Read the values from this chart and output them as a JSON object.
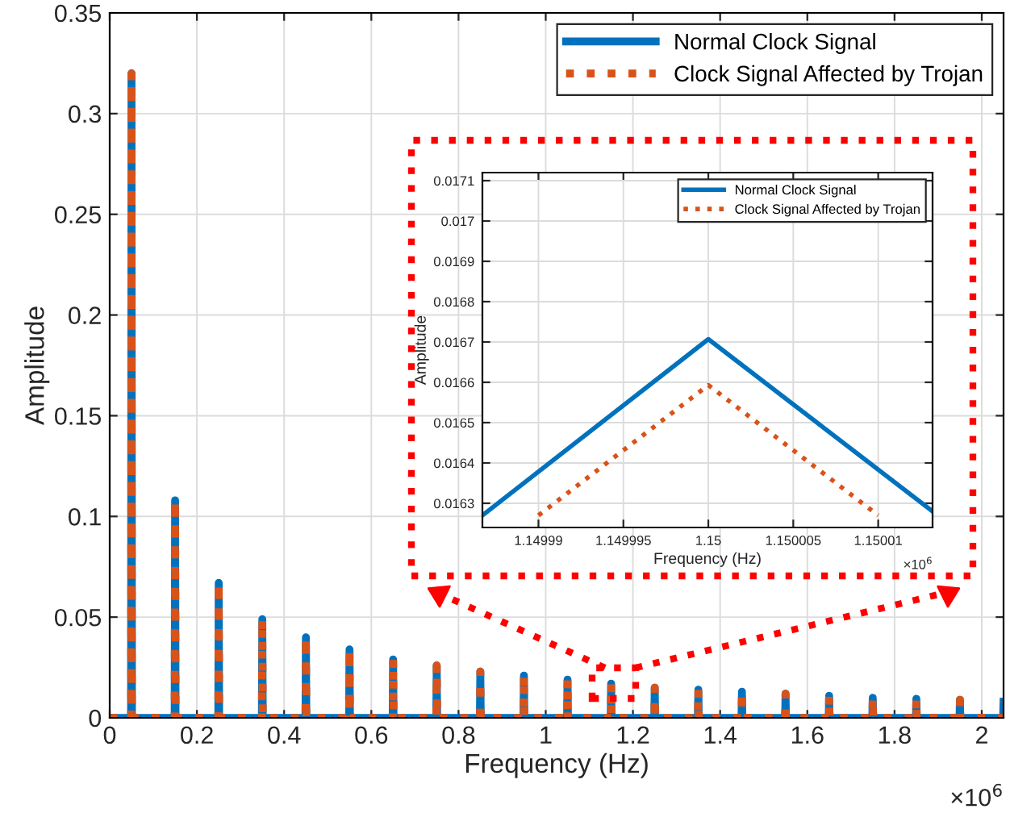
{
  "chart_data": [
    {
      "type": "line",
      "xlabel": "Frequency (Hz)",
      "ylabel": "Amplitude",
      "annotations": [
        "×10$^{6}$"
      ],
      "xlim": [
        0,
        2.05
      ],
      "ylim": [
        0,
        0.35
      ],
      "xticks": [
        0,
        0.2,
        0.4,
        0.6,
        0.8,
        1,
        1.2,
        1.4,
        1.6,
        1.8,
        2
      ],
      "yticks": [
        0,
        0.05,
        0.1,
        0.15,
        0.2,
        0.25,
        0.3,
        0.35
      ],
      "grid": true,
      "legend": "top right",
      "x": [
        0,
        0.049,
        0.05,
        0.051,
        0.149,
        0.15,
        0.151,
        0.249,
        0.25,
        0.251,
        0.349,
        0.35,
        0.351,
        0.449,
        0.45,
        0.451,
        0.549,
        0.55,
        0.551,
        0.649,
        0.65,
        0.651,
        0.749,
        0.75,
        0.751,
        0.849,
        0.85,
        0.851,
        0.949,
        0.95,
        0.951,
        1.049,
        1.05,
        1.051,
        1.149,
        1.15,
        1.151,
        1.249,
        1.25,
        1.251,
        1.349,
        1.35,
        1.351,
        1.449,
        1.45,
        1.451,
        1.549,
        1.55,
        1.551,
        1.649,
        1.65,
        1.651,
        1.749,
        1.75,
        1.751,
        1.849,
        1.85,
        1.851,
        1.949,
        1.95,
        1.951,
        2.049,
        2.05
      ],
      "series": [
        {
          "name": "Normal Clock Signal",
          "color": "#0072bd",
          "line_style": "solid",
          "values": [
            0,
            0,
            0.32,
            0,
            0,
            0.108,
            0,
            0,
            0.067,
            0,
            0,
            0.049,
            0,
            0,
            0.04,
            0,
            0,
            0.034,
            0,
            0,
            0.029,
            0,
            0,
            0.026,
            0,
            0,
            0.023,
            0,
            0,
            0.021,
            0,
            0,
            0.019,
            0,
            0,
            0.017,
            0,
            0,
            0.015,
            0,
            0,
            0.014,
            0,
            0,
            0.013,
            0,
            0,
            0.012,
            0,
            0,
            0.011,
            0,
            0,
            0.01,
            0,
            0,
            0.0095,
            0,
            0,
            0.009,
            0,
            0,
            0.008
          ]
        },
        {
          "name": "Clock Signal Affected by Trojan",
          "color": "#d95319",
          "line_style": "dotted",
          "values": [
            0,
            0,
            0.32,
            0,
            0,
            0.108,
            0,
            0,
            0.067,
            0,
            0,
            0.049,
            0,
            0,
            0.04,
            0,
            0,
            0.034,
            0,
            0,
            0.029,
            0,
            0,
            0.026,
            0,
            0,
            0.023,
            0,
            0,
            0.021,
            0,
            0,
            0.019,
            0,
            0,
            0.017,
            0,
            0,
            0.015,
            0,
            0,
            0.014,
            0,
            0,
            0.013,
            0,
            0,
            0.012,
            0,
            0,
            0.011,
            0,
            0,
            0.01,
            0,
            0,
            0.0095,
            0,
            0,
            0.009,
            0,
            0,
            0.008
          ]
        }
      ]
    },
    {
      "type": "line",
      "xlabel": "Frequency (Hz)",
      "ylabel": "Amplitude",
      "annotations": [
        "×10$^{6}$"
      ],
      "xlim": [
        1.1499867,
        1.1500132
      ],
      "ylim": [
        0.01624,
        0.01712
      ],
      "xticks": [
        1.14999,
        1.149995,
        1.15,
        1.150005,
        1.15001
      ],
      "yticks": [
        0.0163,
        0.0164,
        0.0165,
        0.0166,
        0.0167,
        0.0168,
        0.0169,
        0.017,
        0.0171
      ],
      "grid": true,
      "legend": "top right",
      "series": [
        {
          "name": "Normal Clock Signal",
          "color": "#0072bd",
          "line_style": "solid",
          "x": [
            1.1499867,
            1.15,
            1.1500132
          ],
          "values": [
            0.01627,
            0.016707,
            0.01628
          ]
        },
        {
          "name": "Clock Signal Affected by Trojan",
          "color": "#d95319",
          "line_style": "dotted",
          "x": [
            1.14999,
            1.15,
            1.15001
          ],
          "values": [
            0.01627,
            0.016593,
            0.01627
          ]
        }
      ]
    }
  ]
}
